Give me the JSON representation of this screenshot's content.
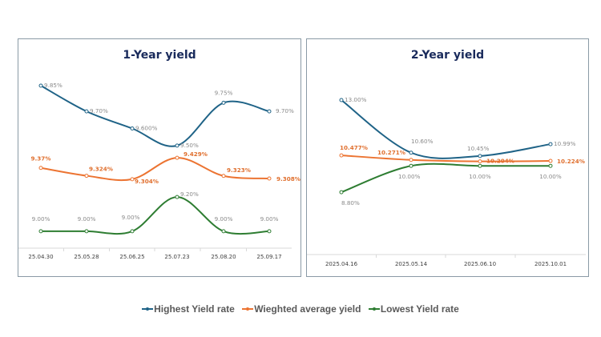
{
  "colors": {
    "highest": "#1f6387",
    "average": "#ec7432",
    "lowest": "#2e7d32"
  },
  "legend": [
    {
      "key": "highest",
      "label": "Highest Yield rate"
    },
    {
      "key": "average",
      "label": "Wieghted average yield"
    },
    {
      "key": "lowest",
      "label": "Lowest Yield rate"
    }
  ],
  "chart_data": [
    {
      "type": "line",
      "title": "1-Year yield",
      "xlabel": "",
      "ylabel": "",
      "grid": false,
      "legend": "bottom",
      "categories": [
        "25.04.30",
        "25.05.28",
        "25.06.25",
        "25.07.23",
        "25.08.20",
        "25.09.17"
      ],
      "series": [
        {
          "key": "highest",
          "name": "Highest Yield rate",
          "values": [
            9.85,
            9.7,
            9.6,
            9.5,
            9.75,
            9.7
          ],
          "labels": [
            "9.85%",
            "9.70%",
            "9.600%",
            "9.50%",
            "9.75%",
            "9.70%"
          ]
        },
        {
          "key": "average",
          "name": "Wieghted average yield",
          "values": [
            9.37,
            9.324,
            9.304,
            9.429,
            9.323,
            9.308
          ],
          "labels": [
            "9.37%",
            "9.324%",
            "9.304%",
            "9.429%",
            "9.323%",
            "9.308%"
          ]
        },
        {
          "key": "lowest",
          "name": "Lowest Yield rate",
          "values": [
            9.0,
            9.0,
            9.0,
            9.2,
            9.0,
            9.0
          ],
          "labels": [
            "9.00%",
            "9.00%",
            "9.00%",
            "9.20%",
            "9.00%",
            "9.00%"
          ]
        }
      ]
    },
    {
      "type": "line",
      "title": "2-Year yield",
      "xlabel": "",
      "ylabel": "",
      "grid": false,
      "legend": "bottom",
      "categories": [
        "2025.04.16",
        "2025.05.14",
        "2025.06.10",
        "2025.10.01"
      ],
      "series": [
        {
          "key": "highest",
          "name": "Highest Yield rate",
          "values": [
            13.0,
            10.6,
            10.45,
            10.99
          ],
          "labels": [
            "13.00%",
            "10.60%",
            "10.45%",
            "10.99%"
          ]
        },
        {
          "key": "average",
          "name": "Wieghted average yield",
          "values": [
            10.477,
            10.271,
            10.204,
            10.224
          ],
          "labels": [
            "10.477%",
            "10.271%",
            "10.204%",
            "10.224%"
          ]
        },
        {
          "key": "lowest",
          "name": "Lowest Yield rate",
          "values": [
            8.8,
            10.0,
            10.0,
            10.0
          ],
          "labels": [
            "8.80%",
            "10.00%",
            "10.00%",
            "10.00%"
          ]
        }
      ]
    }
  ]
}
